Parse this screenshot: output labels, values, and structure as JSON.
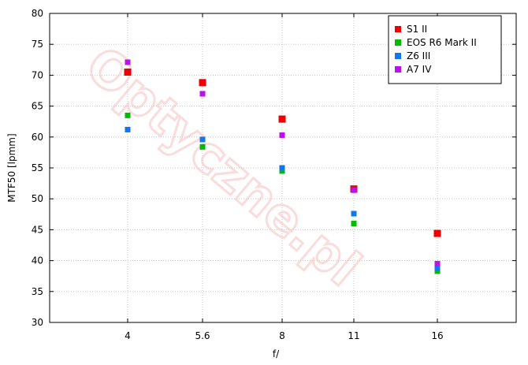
{
  "chart_data": {
    "type": "scatter",
    "title": "",
    "xlabel": "f/",
    "ylabel": "MTF50 [lpmm]",
    "categories": [
      "4",
      "5.6",
      "8",
      "11",
      "16"
    ],
    "ylim": [
      30,
      80
    ],
    "yticks": [
      30,
      35,
      40,
      45,
      50,
      55,
      60,
      65,
      70,
      75,
      80
    ],
    "grid": true,
    "legend_position": "top-right",
    "watermark": "Optyczne.pl",
    "series": [
      {
        "name": "S1 II",
        "color": "#ee0000",
        "values": [
          70.5,
          68.8,
          62.9,
          51.6,
          44.4
        ]
      },
      {
        "name": "EOS R6 Mark II",
        "color": "#00bb00",
        "values": [
          63.5,
          58.4,
          54.5,
          46.0,
          38.3
        ]
      },
      {
        "name": "Z6 III",
        "color": "#1177ee",
        "values": [
          61.2,
          59.6,
          55.0,
          47.6,
          38.8
        ]
      },
      {
        "name": "A7 IV",
        "color": "#bb11ee",
        "values": [
          72.1,
          67.0,
          60.3,
          51.4,
          39.5
        ]
      }
    ]
  }
}
